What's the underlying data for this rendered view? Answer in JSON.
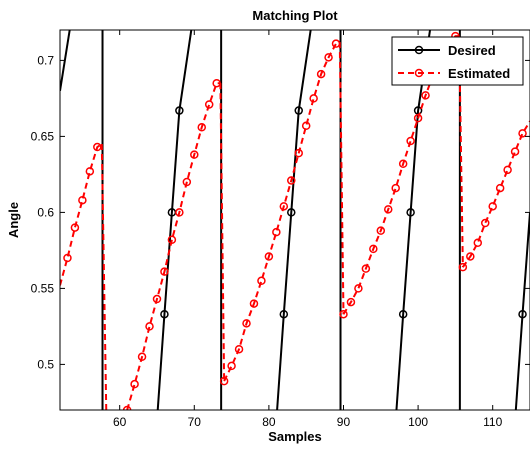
{
  "chart_data": {
    "type": "line",
    "title": "Matching Plot",
    "xlabel": "Samples",
    "ylabel": "Angle",
    "xlim": [
      52,
      115
    ],
    "ylim": [
      0.47,
      0.72
    ],
    "xticks": [
      60,
      70,
      80,
      90,
      100,
      110
    ],
    "yticks": [
      0.5,
      0.55,
      0.6,
      0.65,
      0.7
    ],
    "grid": false,
    "legend_position": "top-right",
    "colors": {
      "desired": "#000000",
      "estimated": "#ff0000"
    },
    "series": [
      {
        "name": "Desired",
        "style": "solid-circle",
        "segments": [
          {
            "x": [
              52,
              53.3
            ],
            "y": [
              0.68,
              0.72
            ]
          },
          {
            "x": [
              57.7,
              57.7
            ],
            "y": [
              0.72,
              0.47
            ]
          },
          {
            "x": [
              65.1,
              66,
              67,
              68,
              69.6
            ],
            "y": [
              0.47,
              0.533,
              0.6,
              0.667,
              0.72
            ]
          },
          {
            "x": [
              73.6,
              73.6
            ],
            "y": [
              0.72,
              0.47
            ]
          },
          {
            "x": [
              81.1,
              82,
              83,
              84,
              85.6
            ],
            "y": [
              0.47,
              0.533,
              0.6,
              0.667,
              0.72
            ]
          },
          {
            "x": [
              89.6,
              89.6
            ],
            "y": [
              0.72,
              0.47
            ]
          },
          {
            "x": [
              97.1,
              98,
              99,
              100,
              101.6
            ],
            "y": [
              0.47,
              0.533,
              0.6,
              0.667,
              0.72
            ]
          },
          {
            "x": [
              105.6,
              105.6
            ],
            "y": [
              0.72,
              0.47
            ]
          },
          {
            "x": [
              113.1,
              114,
              115
            ],
            "y": [
              0.47,
              0.533,
              0.6
            ]
          }
        ],
        "markers": {
          "x": [
            66,
            67,
            68,
            82,
            83,
            84,
            98,
            99,
            100,
            114
          ],
          "y": [
            0.533,
            0.6,
            0.667,
            0.533,
            0.6,
            0.667,
            0.533,
            0.6,
            0.667,
            0.533
          ]
        }
      },
      {
        "name": "Estimated",
        "style": "dashed-circle",
        "segments": [
          {
            "x": [
              52,
              53,
              54,
              55,
              56,
              57,
              57.6
            ],
            "y": [
              0.552,
              0.57,
              0.59,
              0.608,
              0.627,
              0.643,
              0.645
            ]
          },
          {
            "x": [
              57.6,
              58.2
            ],
            "y": [
              0.645,
              0.47
            ]
          },
          {
            "x": [
              61,
              62,
              63,
              64,
              65,
              66,
              67,
              68,
              69,
              70,
              71,
              72,
              73,
              73.5
            ],
            "y": [
              0.47,
              0.487,
              0.505,
              0.525,
              0.543,
              0.561,
              0.582,
              0.6,
              0.62,
              0.638,
              0.656,
              0.671,
              0.685,
              0.685
            ]
          },
          {
            "x": [
              73.5,
              74
            ],
            "y": [
              0.685,
              0.489
            ]
          },
          {
            "x": [
              74,
              75,
              76,
              77,
              78,
              79,
              80,
              81,
              82,
              83,
              84,
              85,
              86,
              87,
              88,
              89,
              89.5
            ],
            "y": [
              0.489,
              0.499,
              0.51,
              0.527,
              0.54,
              0.555,
              0.571,
              0.587,
              0.604,
              0.621,
              0.639,
              0.657,
              0.675,
              0.691,
              0.702,
              0.711,
              0.712
            ]
          },
          {
            "x": [
              89.5,
              90
            ],
            "y": [
              0.712,
              0.533
            ]
          },
          {
            "x": [
              90,
              91,
              92,
              93,
              94,
              95,
              96,
              97,
              98,
              99,
              100,
              101,
              102,
              103,
              104,
              105,
              105.5
            ],
            "y": [
              0.533,
              0.541,
              0.55,
              0.563,
              0.576,
              0.588,
              0.602,
              0.616,
              0.632,
              0.647,
              0.662,
              0.677,
              0.69,
              0.702,
              0.71,
              0.716,
              0.716
            ]
          },
          {
            "x": [
              105.5,
              106
            ],
            "y": [
              0.716,
              0.564
            ]
          },
          {
            "x": [
              106,
              107,
              108,
              109,
              110,
              111,
              112,
              113,
              114,
              115
            ],
            "y": [
              0.564,
              0.571,
              0.58,
              0.593,
              0.604,
              0.616,
              0.628,
              0.64,
              0.652,
              0.66
            ]
          }
        ],
        "markers": {
          "x": [
            53,
            54,
            55,
            56,
            57,
            61,
            62,
            63,
            64,
            65,
            66,
            67,
            68,
            69,
            70,
            71,
            72,
            73,
            74,
            75,
            76,
            77,
            78,
            79,
            80,
            81,
            82,
            83,
            84,
            85,
            86,
            87,
            88,
            89,
            90,
            91,
            92,
            93,
            94,
            95,
            96,
            97,
            98,
            99,
            100,
            101,
            102,
            103,
            104,
            105,
            106,
            107,
            108,
            109,
            110,
            111,
            112,
            113,
            114
          ],
          "y": [
            0.57,
            0.59,
            0.608,
            0.627,
            0.643,
            0.47,
            0.487,
            0.505,
            0.525,
            0.543,
            0.561,
            0.582,
            0.6,
            0.62,
            0.638,
            0.656,
            0.671,
            0.685,
            0.489,
            0.499,
            0.51,
            0.527,
            0.54,
            0.555,
            0.571,
            0.587,
            0.604,
            0.621,
            0.639,
            0.657,
            0.675,
            0.691,
            0.702,
            0.711,
            0.533,
            0.541,
            0.55,
            0.563,
            0.576,
            0.588,
            0.602,
            0.616,
            0.632,
            0.647,
            0.662,
            0.677,
            0.69,
            0.702,
            0.71,
            0.716,
            0.564,
            0.571,
            0.58,
            0.593,
            0.604,
            0.616,
            0.628,
            0.64,
            0.652
          ]
        }
      }
    ]
  }
}
